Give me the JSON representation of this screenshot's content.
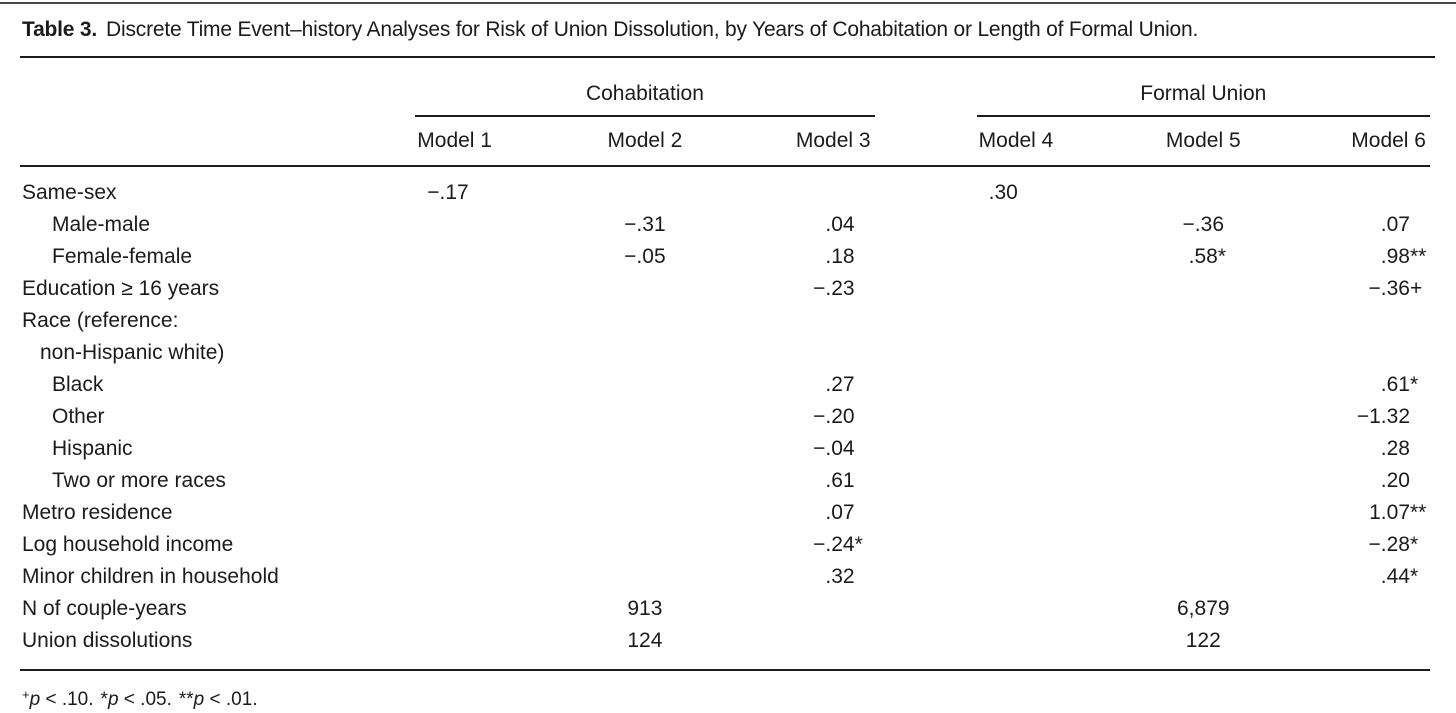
{
  "page": {
    "background": "#ffffff",
    "text_color": "#1b1b1b",
    "rule_color": "#1c1c1c"
  },
  "title": {
    "label": "Table 3.",
    "text": "Discrete Time Event–history Analyses for Risk of Union Dissolution, by Years of Cohabitation or Length of Formal Union."
  },
  "table": {
    "column_groups": [
      {
        "label": "Cohabitation",
        "columns": [
          "Model 1",
          "Model 2",
          "Model 3"
        ]
      },
      {
        "label": "Formal Union",
        "columns": [
          "Model 4",
          "Model 5",
          "Model 6"
        ]
      }
    ],
    "rows": [
      {
        "label": "Same-sex",
        "indent": 0,
        "values": [
          "−.17",
          "",
          "",
          ".30",
          "",
          ""
        ]
      },
      {
        "label": "Male-male",
        "indent": 1,
        "values": [
          "",
          "−.31",
          ".04",
          "",
          "−.36",
          ".07"
        ]
      },
      {
        "label": "Female-female",
        "indent": 1,
        "values": [
          "",
          "−.05",
          ".18",
          "",
          ".58*",
          ".98**"
        ]
      },
      {
        "label": "Education ≥ 16 years",
        "indent": 0,
        "values": [
          "",
          "",
          "−.23",
          "",
          "",
          "−.36+"
        ]
      },
      {
        "label": "Race (reference:",
        "indent": 0,
        "values": [
          "",
          "",
          "",
          "",
          "",
          ""
        ]
      },
      {
        "label": "non-Hispanic white)",
        "indent": 2,
        "values": [
          "",
          "",
          "",
          "",
          "",
          ""
        ]
      },
      {
        "label": "Black",
        "indent": 1,
        "values": [
          "",
          "",
          ".27",
          "",
          "",
          ".61*"
        ]
      },
      {
        "label": "Other",
        "indent": 1,
        "values": [
          "",
          "",
          "−.20",
          "",
          "",
          "−1.32"
        ]
      },
      {
        "label": "Hispanic",
        "indent": 1,
        "values": [
          "",
          "",
          "−.04",
          "",
          "",
          ".28"
        ]
      },
      {
        "label": "Two or more races",
        "indent": 1,
        "values": [
          "",
          "",
          ".61",
          "",
          "",
          ".20"
        ]
      },
      {
        "label": "Metro residence",
        "indent": 0,
        "values": [
          "",
          "",
          ".07",
          "",
          "",
          "1.07**"
        ]
      },
      {
        "label": "Log household income",
        "indent": 0,
        "values": [
          "",
          "",
          "−.24*",
          "",
          "",
          "−.28*"
        ]
      },
      {
        "label": "Minor children in household",
        "indent": 0,
        "values": [
          "",
          "",
          ".32",
          "",
          "",
          ".44*"
        ]
      },
      {
        "label": "N of couple-years",
        "indent": 0,
        "values": [
          "",
          "913",
          "",
          "",
          "6,879",
          ""
        ]
      },
      {
        "label": "Union dissolutions",
        "indent": 0,
        "values": [
          "",
          "124",
          "",
          "",
          "122",
          ""
        ]
      }
    ]
  },
  "footnote": {
    "items": [
      {
        "marker": "+",
        "superscript": true,
        "variable": "p",
        "rest": " < .10."
      },
      {
        "marker": "*",
        "superscript": false,
        "variable": "p",
        "rest": " < .05."
      },
      {
        "marker": "**",
        "superscript": false,
        "variable": "p",
        "rest": " < .01."
      }
    ]
  }
}
